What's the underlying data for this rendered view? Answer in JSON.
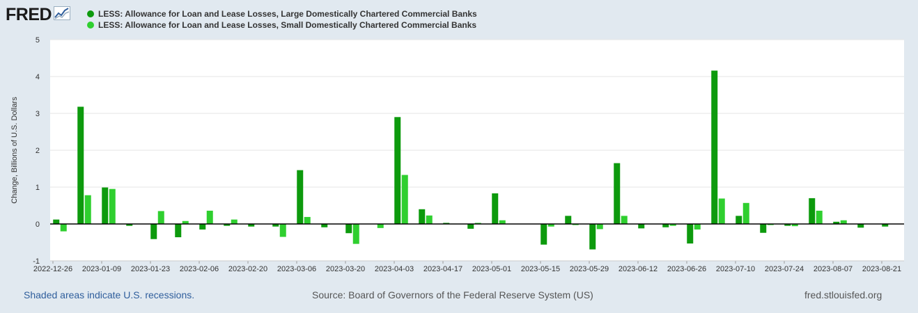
{
  "header": {
    "logo_text": "FRED",
    "logo_icon": "trend-line-icon"
  },
  "footer": {
    "recession_note": "Shaded areas indicate U.S. recessions.",
    "source": "Source: Board of Governors of the Federal Reserve System (US)",
    "site": "fred.stlouisfed.org"
  },
  "colors": {
    "page_bg": "#e1e9f0",
    "plot_bg": "#ffffff",
    "gridline": "#e6e6e6",
    "zero_line": "#000000"
  },
  "chart_data": {
    "type": "bar",
    "title": "",
    "xlabel": "",
    "ylabel": "Change, Billions of U.S. Dollars",
    "ylim": [
      -1,
      5
    ],
    "yticks": [
      -1,
      0,
      1,
      2,
      3,
      4,
      5
    ],
    "grid": true,
    "legend_position": "top-left",
    "x_tick_labels": [
      "2022-12-26",
      "2023-01-09",
      "2023-01-23",
      "2023-02-06",
      "2023-02-20",
      "2023-03-06",
      "2023-03-20",
      "2023-04-03",
      "2023-04-17",
      "2023-05-01",
      "2023-05-15",
      "2023-05-29",
      "2023-06-12",
      "2023-06-26",
      "2023-07-10",
      "2023-07-24",
      "2023-08-07",
      "2023-08-21"
    ],
    "categories": [
      "2022-12-28",
      "2023-01-04",
      "2023-01-11",
      "2023-01-18",
      "2023-01-25",
      "2023-02-01",
      "2023-02-08",
      "2023-02-15",
      "2023-02-22",
      "2023-03-01",
      "2023-03-08",
      "2023-03-15",
      "2023-03-22",
      "2023-03-29",
      "2023-04-05",
      "2023-04-12",
      "2023-04-19",
      "2023-04-26",
      "2023-05-03",
      "2023-05-10",
      "2023-05-17",
      "2023-05-24",
      "2023-05-31",
      "2023-06-07",
      "2023-06-14",
      "2023-06-21",
      "2023-06-28",
      "2023-07-05",
      "2023-07-12",
      "2023-07-19",
      "2023-07-26",
      "2023-08-02",
      "2023-08-09",
      "2023-08-16",
      "2023-08-23"
    ],
    "series": [
      {
        "name": "LESS: Allowance for Loan and Lease Losses, Large Domestically Chartered Commercial Banks",
        "color": "#0d9a0d",
        "values": [
          0.12,
          3.18,
          0.99,
          -0.05,
          -0.41,
          -0.36,
          -0.15,
          -0.05,
          -0.07,
          -0.07,
          1.46,
          -0.09,
          -0.25,
          0.0,
          2.9,
          0.4,
          0.03,
          -0.13,
          0.83,
          0.0,
          -0.56,
          0.22,
          -0.69,
          1.65,
          -0.12,
          -0.09,
          -0.53,
          4.16,
          0.22,
          -0.24,
          -0.05,
          0.7,
          0.06,
          -0.1,
          -0.07
        ]
      },
      {
        "name": "LESS: Allowance for Loan and Lease Losses, Small Domestically Chartered Commercial Banks",
        "color": "#2fcf2f",
        "values": [
          -0.2,
          0.78,
          0.95,
          0.0,
          0.35,
          0.08,
          0.36,
          0.12,
          0.0,
          -0.35,
          0.19,
          0.0,
          -0.54,
          -0.11,
          1.33,
          0.23,
          0.01,
          0.03,
          0.1,
          0.0,
          -0.07,
          -0.03,
          -0.14,
          0.22,
          0.0,
          -0.05,
          -0.15,
          0.69,
          0.57,
          -0.03,
          -0.06,
          0.36,
          0.1,
          0.0,
          0.0
        ]
      }
    ]
  }
}
